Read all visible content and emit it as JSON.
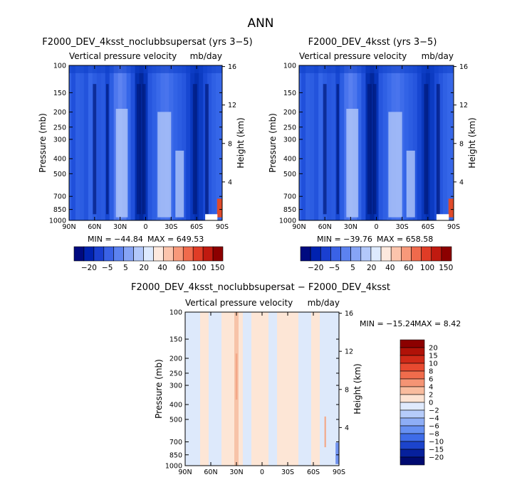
{
  "figure": {
    "title": "ANN",
    "units_label": "mb/day",
    "field_label": "Vertical pressure velocity"
  },
  "chart_data": [
    {
      "type": "heatmap",
      "title": "F2000_DEV_4ksst_noclubbsupersat (yrs 3−5)",
      "subtitle": "Vertical pressure velocity",
      "units": "mb/day",
      "xlabel": "",
      "ylabel": "Pressure (mb)",
      "y2label": "Height (km)",
      "x_ticks": [
        "90N",
        "60N",
        "30N",
        "0",
        "30S",
        "60S",
        "90S"
      ],
      "y_ticks": [
        100,
        150,
        200,
        250,
        300,
        400,
        500,
        700,
        850,
        1000
      ],
      "y2_ticks": [
        4,
        8,
        12,
        16
      ],
      "ylim": [
        1000,
        100
      ],
      "min_label": "MIN = −44.84",
      "max_label": "MAX = 649.53",
      "colorbar_levels": [
        "−20",
        "−5",
        "5",
        "20",
        "40",
        "60",
        "100",
        "150"
      ],
      "colorbar_colors": [
        "#000a80",
        "#0022b0",
        "#1a3fd0",
        "#3a62e6",
        "#5c82f0",
        "#86a4f5",
        "#b2c8fa",
        "#ddeafe",
        "#fde9de",
        "#fbc4ac",
        "#f7997a",
        "#f06a4c",
        "#e03c26",
        "#c01a10",
        "#8c0000"
      ],
      "lat_columns": [
        {
          "lat": 90,
          "v": 0.48
        },
        {
          "lat": 85,
          "v": 0.36
        },
        {
          "lat": 80,
          "v": 0.46
        },
        {
          "lat": 75,
          "v": 0.44
        },
        {
          "lat": 70,
          "v": 0.38
        },
        {
          "lat": 65,
          "v": 0.5
        },
        {
          "lat": 60,
          "v": 0.44
        },
        {
          "lat": 55,
          "v": 0.4
        },
        {
          "lat": 50,
          "v": 0.42
        },
        {
          "lat": 45,
          "v": 0.3
        },
        {
          "lat": 40,
          "v": 0.44
        },
        {
          "lat": 35,
          "v": 0.62
        },
        {
          "lat": 30,
          "v": 0.7
        },
        {
          "lat": 25,
          "v": 0.64
        },
        {
          "lat": 20,
          "v": 0.5
        },
        {
          "lat": 15,
          "v": 0.36
        },
        {
          "lat": 10,
          "v": 0.14
        },
        {
          "lat": 5,
          "v": 0.06
        },
        {
          "lat": 0,
          "v": 0.18
        },
        {
          "lat": -5,
          "v": 0.4
        },
        {
          "lat": -10,
          "v": 0.46
        },
        {
          "lat": -15,
          "v": 0.52
        },
        {
          "lat": -20,
          "v": 0.58
        },
        {
          "lat": -25,
          "v": 0.6
        },
        {
          "lat": -30,
          "v": 0.54
        },
        {
          "lat": -35,
          "v": 0.48
        },
        {
          "lat": -40,
          "v": 0.44
        },
        {
          "lat": -45,
          "v": 0.4
        },
        {
          "lat": -50,
          "v": 0.3
        },
        {
          "lat": -55,
          "v": 0.2
        },
        {
          "lat": -60,
          "v": 0.14
        },
        {
          "lat": -65,
          "v": 0.22
        },
        {
          "lat": -70,
          "v": 0.32
        },
        {
          "lat": -75,
          "v": 0.4
        },
        {
          "lat": -80,
          "v": 0.46
        },
        {
          "lat": -85,
          "v": 0.5
        },
        {
          "lat": -90,
          "v": 0.52
        }
      ]
    },
    {
      "type": "heatmap",
      "title": "F2000_DEV_4ksst (yrs 3−5)",
      "subtitle": "Vertical pressure velocity",
      "units": "mb/day",
      "xlabel": "",
      "ylabel": "Pressure (mb)",
      "y2label": "Height (km)",
      "x_ticks": [
        "90N",
        "60N",
        "30N",
        "0",
        "30S",
        "60S",
        "90S"
      ],
      "y_ticks": [
        100,
        150,
        200,
        250,
        300,
        400,
        500,
        700,
        850,
        1000
      ],
      "y2_ticks": [
        4,
        8,
        12,
        16
      ],
      "ylim": [
        1000,
        100
      ],
      "min_label": "MIN = −39.76",
      "max_label": "MAX = 658.58",
      "colorbar_levels": [
        "−20",
        "−5",
        "5",
        "20",
        "40",
        "60",
        "100",
        "150"
      ],
      "colorbar_colors": [
        "#000a80",
        "#0022b0",
        "#1a3fd0",
        "#3a62e6",
        "#5c82f0",
        "#86a4f5",
        "#b2c8fa",
        "#ddeafe",
        "#fde9de",
        "#fbc4ac",
        "#f7997a",
        "#f06a4c",
        "#e03c26",
        "#c01a10",
        "#8c0000"
      ],
      "lat_columns": [
        {
          "lat": 90,
          "v": 0.48
        },
        {
          "lat": 85,
          "v": 0.36
        },
        {
          "lat": 80,
          "v": 0.46
        },
        {
          "lat": 75,
          "v": 0.44
        },
        {
          "lat": 70,
          "v": 0.38
        },
        {
          "lat": 65,
          "v": 0.5
        },
        {
          "lat": 60,
          "v": 0.44
        },
        {
          "lat": 55,
          "v": 0.4
        },
        {
          "lat": 50,
          "v": 0.42
        },
        {
          "lat": 45,
          "v": 0.3
        },
        {
          "lat": 40,
          "v": 0.44
        },
        {
          "lat": 35,
          "v": 0.6
        },
        {
          "lat": 30,
          "v": 0.68
        },
        {
          "lat": 25,
          "v": 0.62
        },
        {
          "lat": 20,
          "v": 0.5
        },
        {
          "lat": 15,
          "v": 0.36
        },
        {
          "lat": 10,
          "v": 0.14
        },
        {
          "lat": 5,
          "v": 0.06
        },
        {
          "lat": 0,
          "v": 0.18
        },
        {
          "lat": -5,
          "v": 0.4
        },
        {
          "lat": -10,
          "v": 0.46
        },
        {
          "lat": -15,
          "v": 0.52
        },
        {
          "lat": -20,
          "v": 0.58
        },
        {
          "lat": -25,
          "v": 0.6
        },
        {
          "lat": -30,
          "v": 0.54
        },
        {
          "lat": -35,
          "v": 0.48
        },
        {
          "lat": -40,
          "v": 0.44
        },
        {
          "lat": -45,
          "v": 0.4
        },
        {
          "lat": -50,
          "v": 0.3
        },
        {
          "lat": -55,
          "v": 0.2
        },
        {
          "lat": -60,
          "v": 0.14
        },
        {
          "lat": -65,
          "v": 0.22
        },
        {
          "lat": -70,
          "v": 0.32
        },
        {
          "lat": -75,
          "v": 0.4
        },
        {
          "lat": -80,
          "v": 0.46
        },
        {
          "lat": -85,
          "v": 0.5
        },
        {
          "lat": -90,
          "v": 0.52
        }
      ]
    },
    {
      "type": "heatmap",
      "title": "F2000_DEV_4ksst_noclubbsupersat − F2000_DEV_4ksst",
      "subtitle": "Vertical pressure velocity",
      "units": "mb/day",
      "xlabel": "",
      "ylabel": "Pressure (mb)",
      "y2label": "Height (km)",
      "x_ticks": [
        "90N",
        "60N",
        "30N",
        "0",
        "30S",
        "60S",
        "90S"
      ],
      "y_ticks": [
        100,
        150,
        200,
        250,
        300,
        400,
        500,
        700,
        850,
        1000
      ],
      "y2_ticks": [
        4,
        8,
        12,
        16
      ],
      "ylim": [
        1000,
        100
      ],
      "min_label": "MIN = −15.24",
      "max_label": "MAX =    8.42",
      "colorbar_levels": [
        "20",
        "15",
        "10",
        "8",
        "6",
        "4",
        "2",
        "0",
        "−2",
        "−4",
        "−6",
        "−8",
        "−10",
        "−15",
        "−20"
      ],
      "colorbar_colors": [
        "#8c0000",
        "#b01208",
        "#d02a18",
        "#e84a30",
        "#f06c4c",
        "#f59474",
        "#f9bc9e",
        "#fde3d2",
        "#dfeafd",
        "#b6ccfa",
        "#8eaef6",
        "#6690f2",
        "#3e6ce8",
        "#1c44cc",
        "#06209c",
        "#000a70"
      ],
      "diff_columns": [
        {
          "lat": 90,
          "v": 0
        },
        {
          "lat": 85,
          "v": 0
        },
        {
          "lat": 80,
          "v": 0
        },
        {
          "lat": 75,
          "v": 0
        },
        {
          "lat": 70,
          "v": 1
        },
        {
          "lat": 65,
          "v": 1
        },
        {
          "lat": 60,
          "v": 0
        },
        {
          "lat": 55,
          "v": 0
        },
        {
          "lat": 50,
          "v": 0
        },
        {
          "lat": 45,
          "v": 1
        },
        {
          "lat": 40,
          "v": 1
        },
        {
          "lat": 35,
          "v": 1
        },
        {
          "lat": 30,
          "v": 2
        },
        {
          "lat": 25,
          "v": 1
        },
        {
          "lat": 20,
          "v": 0
        },
        {
          "lat": 15,
          "v": 0
        },
        {
          "lat": 10,
          "v": 1
        },
        {
          "lat": 5,
          "v": 1
        },
        {
          "lat": 0,
          "v": 1
        },
        {
          "lat": -5,
          "v": 1
        },
        {
          "lat": -10,
          "v": 0
        },
        {
          "lat": -15,
          "v": 0
        },
        {
          "lat": -20,
          "v": 1
        },
        {
          "lat": -25,
          "v": 1
        },
        {
          "lat": -30,
          "v": 1
        },
        {
          "lat": -35,
          "v": 1
        },
        {
          "lat": -40,
          "v": 1
        },
        {
          "lat": -45,
          "v": 0
        },
        {
          "lat": -50,
          "v": 0
        },
        {
          "lat": -55,
          "v": 0
        },
        {
          "lat": -60,
          "v": 1
        },
        {
          "lat": -65,
          "v": 1
        },
        {
          "lat": -70,
          "v": 0
        },
        {
          "lat": -75,
          "v": 0
        },
        {
          "lat": -80,
          "v": 0
        },
        {
          "lat": -85,
          "v": 0
        },
        {
          "lat": -90,
          "v": 0
        }
      ]
    }
  ]
}
